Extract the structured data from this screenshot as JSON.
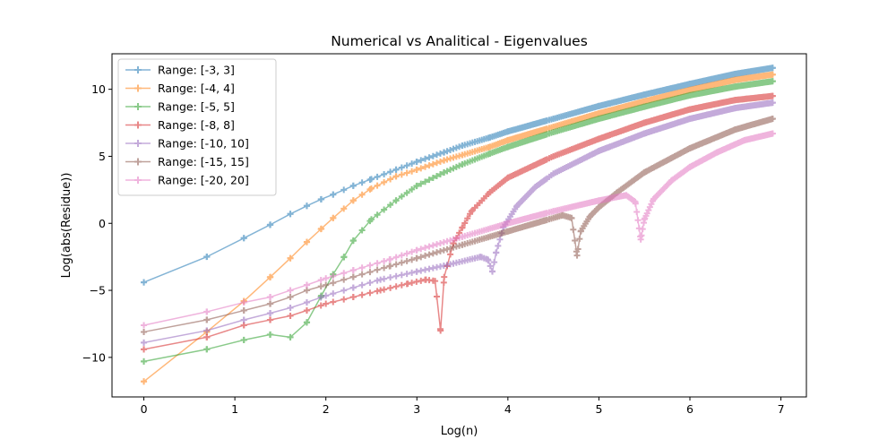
{
  "chart_data": {
    "type": "line",
    "title": "Numerical vs Analitical - Eigenvalues",
    "xlabel": "Log(n)",
    "ylabel": "Log(abs(Residue))",
    "xlim": [
      -0.35,
      7.28
    ],
    "ylim": [
      -12.95,
      12.65
    ],
    "xticks": [
      0,
      1,
      2,
      3,
      4,
      5,
      6,
      7
    ],
    "yticks": [
      -10,
      -5,
      0,
      5,
      10
    ],
    "xtick_labels": [
      "0",
      "1",
      "2",
      "3",
      "4",
      "5",
      "6",
      "7"
    ],
    "ytick_labels": [
      "−10",
      "−5",
      "0",
      "5",
      "10"
    ],
    "grid": false,
    "legend_position": "upper-left",
    "marker": "plus",
    "series": [
      {
        "name": "Range: [-3, 3]",
        "color": "#1f77b4",
        "points": [
          [
            0,
            -4.4
          ],
          [
            0.69,
            -2.5
          ],
          [
            1.1,
            -1.1
          ],
          [
            1.39,
            -0.1
          ],
          [
            1.61,
            0.7
          ],
          [
            1.79,
            1.3
          ],
          [
            1.95,
            1.8
          ],
          [
            2.08,
            2.15
          ],
          [
            2.3,
            2.8
          ],
          [
            2.5,
            3.3
          ],
          [
            2.77,
            4.0
          ],
          [
            3.0,
            4.6
          ],
          [
            3.3,
            5.3
          ],
          [
            3.5,
            5.8
          ],
          [
            3.8,
            6.4
          ],
          [
            4.0,
            6.85
          ],
          [
            4.5,
            7.8
          ],
          [
            5.0,
            8.75
          ],
          [
            5.5,
            9.6
          ],
          [
            6.0,
            10.4
          ],
          [
            6.5,
            11.15
          ],
          [
            6.91,
            11.6
          ]
        ]
      },
      {
        "name": "Range: [-4, 4]",
        "color": "#ff7f0e",
        "points": [
          [
            0,
            -11.8
          ],
          [
            0.69,
            -8.1
          ],
          [
            1.1,
            -5.8
          ],
          [
            1.39,
            -4.0
          ],
          [
            1.61,
            -2.6
          ],
          [
            1.79,
            -1.4
          ],
          [
            1.95,
            -0.4
          ],
          [
            2.08,
            0.4
          ],
          [
            2.3,
            1.7
          ],
          [
            2.5,
            2.6
          ],
          [
            2.77,
            3.5
          ],
          [
            3.0,
            4.0
          ],
          [
            3.3,
            4.7
          ],
          [
            3.5,
            5.1
          ],
          [
            3.8,
            5.7
          ],
          [
            4.0,
            6.2
          ],
          [
            4.5,
            7.2
          ],
          [
            5.0,
            8.2
          ],
          [
            5.5,
            9.1
          ],
          [
            6.0,
            9.95
          ],
          [
            6.5,
            10.7
          ],
          [
            6.91,
            11.1
          ]
        ]
      },
      {
        "name": "Range: [-5, 5]",
        "color": "#2ca02c",
        "points": [
          [
            0,
            -10.3
          ],
          [
            0.69,
            -9.4
          ],
          [
            1.1,
            -8.7
          ],
          [
            1.39,
            -8.3
          ],
          [
            1.61,
            -8.5
          ],
          [
            1.79,
            -7.4
          ],
          [
            1.95,
            -5.4
          ],
          [
            2.08,
            -3.8
          ],
          [
            2.2,
            -2.5
          ],
          [
            2.3,
            -1.3
          ],
          [
            2.5,
            0.3
          ],
          [
            2.77,
            1.7
          ],
          [
            3.0,
            2.8
          ],
          [
            3.3,
            3.8
          ],
          [
            3.5,
            4.4
          ],
          [
            3.8,
            5.2
          ],
          [
            4.0,
            5.7
          ],
          [
            4.5,
            6.8
          ],
          [
            5.0,
            7.8
          ],
          [
            5.5,
            8.7
          ],
          [
            6.0,
            9.55
          ],
          [
            6.5,
            10.2
          ],
          [
            6.91,
            10.6
          ]
        ]
      },
      {
        "name": "Range: [-8, 8]",
        "color": "#d62728",
        "points": [
          [
            0,
            -9.4
          ],
          [
            0.69,
            -8.5
          ],
          [
            1.1,
            -7.6
          ],
          [
            1.39,
            -7.2
          ],
          [
            1.61,
            -6.9
          ],
          [
            1.79,
            -6.5
          ],
          [
            2.0,
            -6.0
          ],
          [
            2.3,
            -5.5
          ],
          [
            2.6,
            -5.0
          ],
          [
            2.9,
            -4.5
          ],
          [
            3.1,
            -4.2
          ],
          [
            3.2,
            -4.3
          ],
          [
            3.26,
            -8.0
          ],
          [
            3.3,
            -4.0
          ],
          [
            3.4,
            -1.5
          ],
          [
            3.5,
            -0.3
          ],
          [
            3.6,
            0.9
          ],
          [
            3.8,
            2.3
          ],
          [
            4.0,
            3.4
          ],
          [
            4.5,
            5.0
          ],
          [
            5.0,
            6.3
          ],
          [
            5.5,
            7.5
          ],
          [
            6.0,
            8.5
          ],
          [
            6.5,
            9.2
          ],
          [
            6.91,
            9.5
          ]
        ]
      },
      {
        "name": "Range: [-10, 10]",
        "color": "#9467bd",
        "points": [
          [
            0,
            -8.9
          ],
          [
            0.69,
            -8.0
          ],
          [
            1.1,
            -7.2
          ],
          [
            1.39,
            -6.7
          ],
          [
            1.61,
            -6.3
          ],
          [
            1.79,
            -5.9
          ],
          [
            2.0,
            -5.4
          ],
          [
            2.3,
            -4.8
          ],
          [
            2.6,
            -4.2
          ],
          [
            3.0,
            -3.6
          ],
          [
            3.4,
            -3.0
          ],
          [
            3.7,
            -2.5
          ],
          [
            3.78,
            -2.7
          ],
          [
            3.83,
            -3.6
          ],
          [
            3.87,
            -2.2
          ],
          [
            3.95,
            -0.3
          ],
          [
            4.1,
            1.3
          ],
          [
            4.3,
            2.7
          ],
          [
            4.5,
            3.7
          ],
          [
            5.0,
            5.4
          ],
          [
            5.5,
            6.7
          ],
          [
            6.0,
            7.8
          ],
          [
            6.5,
            8.6
          ],
          [
            6.91,
            9.0
          ]
        ]
      },
      {
        "name": "Range: [-15, 15]",
        "color": "#8c564b",
        "points": [
          [
            0,
            -8.1
          ],
          [
            0.69,
            -7.2
          ],
          [
            1.1,
            -6.5
          ],
          [
            1.39,
            -6.0
          ],
          [
            1.61,
            -5.5
          ],
          [
            1.79,
            -5.0
          ],
          [
            2.0,
            -4.6
          ],
          [
            2.3,
            -4.0
          ],
          [
            2.7,
            -3.2
          ],
          [
            3.0,
            -2.6
          ],
          [
            3.5,
            -1.6
          ],
          [
            4.0,
            -0.6
          ],
          [
            4.4,
            0.2
          ],
          [
            4.6,
            0.6
          ],
          [
            4.7,
            0.4
          ],
          [
            4.76,
            -2.4
          ],
          [
            4.8,
            -0.6
          ],
          [
            4.9,
            0.5
          ],
          [
            5.0,
            1.2
          ],
          [
            5.2,
            2.3
          ],
          [
            5.5,
            3.8
          ],
          [
            6.0,
            5.6
          ],
          [
            6.5,
            7.0
          ],
          [
            6.91,
            7.8
          ]
        ]
      },
      {
        "name": "Range: [-20, 20]",
        "color": "#e377c2",
        "points": [
          [
            0,
            -7.6
          ],
          [
            0.69,
            -6.6
          ],
          [
            1.1,
            -5.9
          ],
          [
            1.39,
            -5.5
          ],
          [
            1.61,
            -5.0
          ],
          [
            1.79,
            -4.6
          ],
          [
            2.0,
            -4.1
          ],
          [
            2.3,
            -3.5
          ],
          [
            2.7,
            -2.7
          ],
          [
            3.0,
            -2.0
          ],
          [
            3.5,
            -1.0
          ],
          [
            4.0,
            0.0
          ],
          [
            4.5,
            0.9
          ],
          [
            5.0,
            1.7
          ],
          [
            5.3,
            2.1
          ],
          [
            5.4,
            1.6
          ],
          [
            5.46,
            -1.2
          ],
          [
            5.5,
            0.3
          ],
          [
            5.6,
            1.8
          ],
          [
            5.8,
            3.2
          ],
          [
            6.0,
            4.2
          ],
          [
            6.3,
            5.3
          ],
          [
            6.6,
            6.2
          ],
          [
            6.91,
            6.7
          ]
        ]
      }
    ]
  }
}
